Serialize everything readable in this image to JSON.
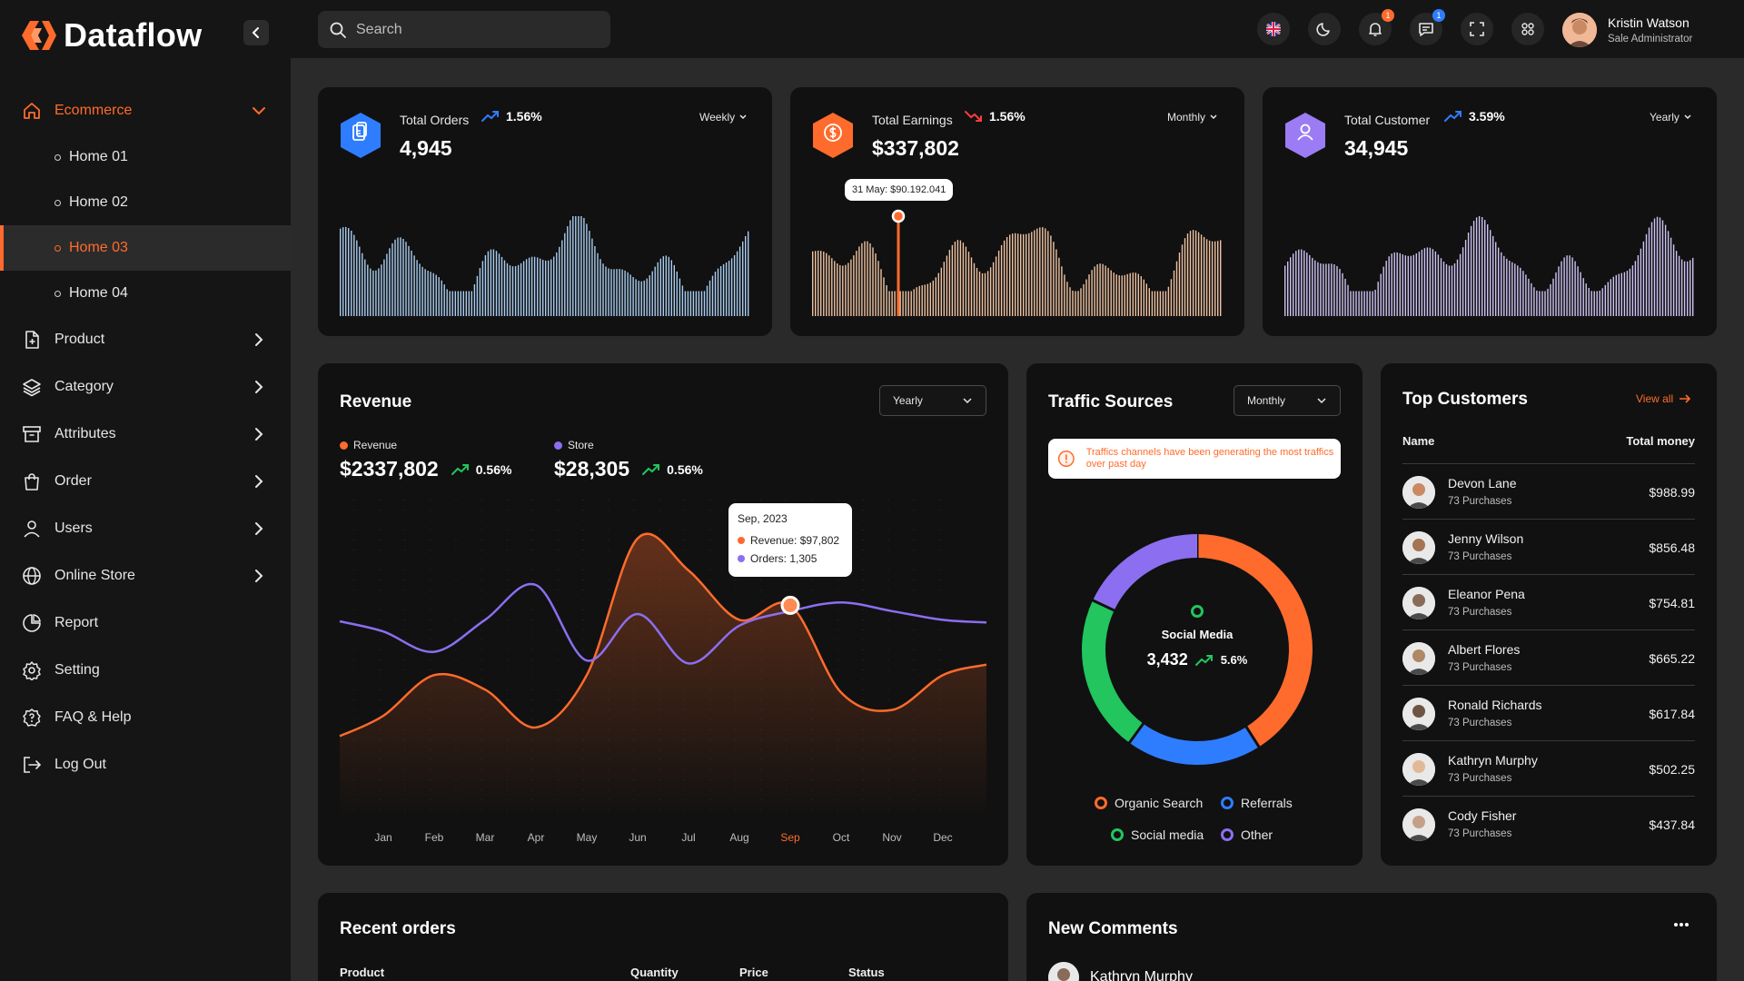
{
  "brand": {
    "name": "Dataflow",
    "accent": "#ff6b2c"
  },
  "search": {
    "placeholder": "Search"
  },
  "sidebar": {
    "ecommerce": {
      "label": "Ecommerce",
      "icon": "home-icon"
    },
    "sub_items": [
      {
        "label": "Home 01"
      },
      {
        "label": "Home 02"
      },
      {
        "label": "Home 03",
        "active": true
      },
      {
        "label": "Home 04"
      }
    ],
    "items": [
      {
        "label": "Product",
        "icon": "file-plus-icon",
        "has_children": true
      },
      {
        "label": "Category",
        "icon": "layers-icon",
        "has_children": true
      },
      {
        "label": "Attributes",
        "icon": "archive-icon",
        "has_children": true
      },
      {
        "label": "Order",
        "icon": "shopping-bag-icon",
        "has_children": true
      },
      {
        "label": "Users",
        "icon": "user-icon",
        "has_children": true
      },
      {
        "label": "Online Store",
        "icon": "globe-icon",
        "has_children": true
      },
      {
        "label": "Report",
        "icon": "pie-chart-icon",
        "has_children": false
      },
      {
        "label": "Setting",
        "icon": "gear-icon",
        "has_children": false
      },
      {
        "label": "FAQ & Help",
        "icon": "help-icon",
        "has_children": false
      },
      {
        "label": "Log Out",
        "icon": "logout-icon",
        "has_children": false
      }
    ]
  },
  "header": {
    "notifications_badge": "1",
    "messages_badge": "1",
    "user": {
      "name": "Kristin Watson",
      "role": "Sale Administrator"
    }
  },
  "stats": [
    {
      "label": "Total Orders",
      "trend": "1.56%",
      "trend_dir": "up",
      "value": "4,945",
      "period": "Weekly",
      "color": "#2f7dff",
      "bar_color": "#a9cdf1"
    },
    {
      "label": "Total Earnings",
      "trend": "1.56%",
      "trend_dir": "down",
      "value": "$337,802",
      "period": "Monthly",
      "color": "#ff6b2c",
      "bar_color": "#f0c3a2",
      "tooltip": "31 May: $90.192.041"
    },
    {
      "label": "Total Customer",
      "trend": "3.59%",
      "trend_dir": "up",
      "value": "34,945",
      "period": "Yearly",
      "color": "#9b7cf5",
      "bar_color": "#cfc4f5"
    }
  ],
  "revenue": {
    "title": "Revenue",
    "period": "Yearly",
    "series": [
      {
        "name": "Revenue",
        "value": "$2337,802",
        "trend": "0.56%",
        "color": "#ff6b2c"
      },
      {
        "name": "Store",
        "value": "$28,305",
        "trend": "0.56%",
        "color": "#8b6ff0"
      }
    ],
    "tooltip": {
      "title": "Sep, 2023",
      "revenue": "Revenue: $97,802",
      "orders": "Orders: 1,305"
    },
    "highlight_month": "Sep"
  },
  "chart_data": {
    "type": "line",
    "x": [
      "Jan",
      "Feb",
      "Mar",
      "Apr",
      "May",
      "Jun",
      "Jul",
      "Aug",
      "Sep",
      "Oct",
      "Nov",
      "Dec"
    ],
    "series": [
      {
        "name": "Revenue",
        "values": [
          35,
          49,
          44,
          31,
          49,
          96,
          85,
          68,
          73,
          43,
          37,
          49
        ]
      },
      {
        "name": "Store",
        "values": [
          64,
          57,
          68,
          80,
          54,
          70,
          53,
          66,
          71,
          74,
          71,
          68
        ]
      }
    ],
    "ylim": [
      0,
      110
    ],
    "grid": false
  },
  "traffic": {
    "title": "Traffic Sources",
    "period": "Monthly",
    "alert": "Traffics channels have been generating the most traffics over past day",
    "center_label": "Social Media",
    "center_value": "3,432",
    "center_trend": "5.6%",
    "segments": [
      {
        "name": "Organic Search",
        "share": 0.41,
        "color": "#ff6b2c"
      },
      {
        "name": "Referrals",
        "share": 0.19,
        "color": "#2f7dff"
      },
      {
        "name": "Social media",
        "share": 0.22,
        "color": "#22c55e"
      },
      {
        "name": "Other",
        "share": 0.18,
        "color": "#8b6ff0"
      }
    ]
  },
  "customers": {
    "title": "Top Customers",
    "view_all": "View all",
    "col_name": "Name",
    "col_money": "Total money",
    "rows": [
      {
        "name": "Devon Lane",
        "purchases": "73 Purchases",
        "money": "$988.99"
      },
      {
        "name": "Jenny Wilson",
        "purchases": "73 Purchases",
        "money": "$856.48"
      },
      {
        "name": "Eleanor Pena",
        "purchases": "73 Purchases",
        "money": "$754.81"
      },
      {
        "name": "Albert Flores",
        "purchases": "73 Purchases",
        "money": "$665.22"
      },
      {
        "name": "Ronald Richards",
        "purchases": "73 Purchases",
        "money": "$617.84"
      },
      {
        "name": "Kathryn Murphy",
        "purchases": "73 Purchases",
        "money": "$502.25"
      },
      {
        "name": "Cody Fisher",
        "purchases": "73 Purchases",
        "money": "$437.84"
      }
    ]
  },
  "recent_orders": {
    "title": "Recent orders",
    "columns": [
      "Product",
      "Quantity",
      "Price",
      "Status"
    ]
  },
  "comments": {
    "title": "New Comments",
    "first_author": "Kathryn Murphy"
  }
}
